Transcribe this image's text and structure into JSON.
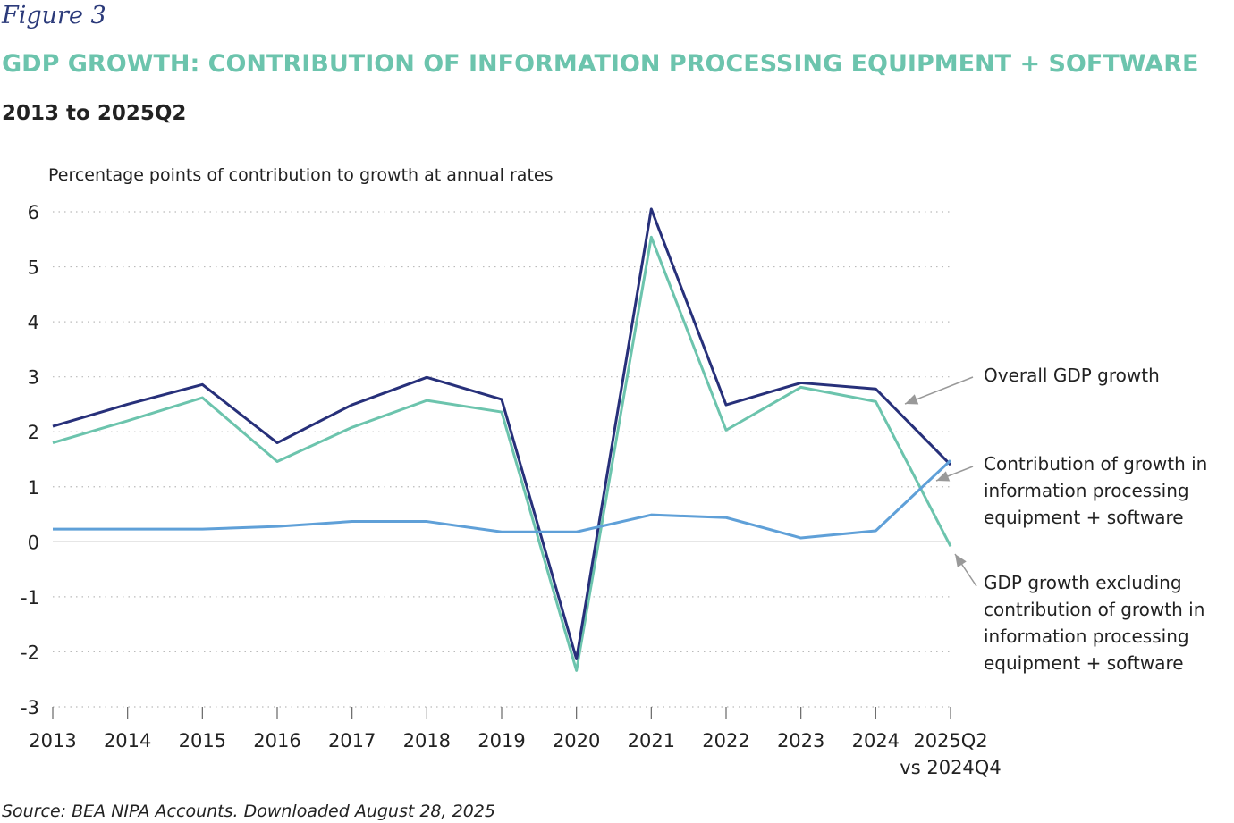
{
  "figure_label": "Figure 3",
  "source": "Source: BEA NIPA Accounts. Downloaded August 28, 2025",
  "chart_data": {
    "type": "line",
    "title": "GDP GROWTH: CONTRIBUTION OF INFORMATION PROCESSING EQUIPMENT + SOFTWARE",
    "subtitle": "2013 to 2025Q2",
    "ylabel": "Percentage points of contribution to growth at annual rates",
    "ylim": [
      -3,
      6
    ],
    "yticks": [
      "6",
      "5",
      "4",
      "3",
      "2",
      "1",
      "0",
      "-1",
      "-2",
      "-3"
    ],
    "grid": "horizontal dotted",
    "categories": [
      "2013",
      "2014",
      "2015",
      "2016",
      "2017",
      "2018",
      "2019",
      "2020",
      "2021",
      "2022",
      "2023",
      "2024",
      "2025Q2"
    ],
    "last_category_sublabel": "vs 2024Q4",
    "series": [
      {
        "name": "Overall GDP growth",
        "color": "#27307a",
        "values": [
          2.1,
          2.5,
          2.86,
          1.8,
          2.49,
          2.99,
          2.59,
          -2.13,
          6.05,
          2.49,
          2.89,
          2.78,
          1.4
        ]
      },
      {
        "name": "GDP growth excluding contribution of growth in information processing equipment + software",
        "color": "#6cc4ad",
        "values": [
          1.8,
          2.2,
          2.62,
          1.46,
          2.08,
          2.57,
          2.36,
          -2.34,
          5.54,
          2.03,
          2.81,
          2.55,
          -0.08
        ]
      },
      {
        "name": "Contribution of growth in information processing equipment + software",
        "color": "#5fa0d8",
        "values": [
          0.23,
          0.23,
          0.23,
          0.28,
          0.37,
          0.37,
          0.18,
          0.18,
          0.49,
          0.44,
          0.07,
          0.2,
          1.48
        ]
      }
    ],
    "annotations": [
      {
        "lines": [
          "Overall GDP growth"
        ]
      },
      {
        "lines": [
          "Contribution of growth in",
          "information processing",
          "equipment + software"
        ]
      },
      {
        "lines": [
          "GDP growth excluding",
          "contribution of growth in",
          "information processing",
          "equipment + software"
        ]
      }
    ]
  }
}
